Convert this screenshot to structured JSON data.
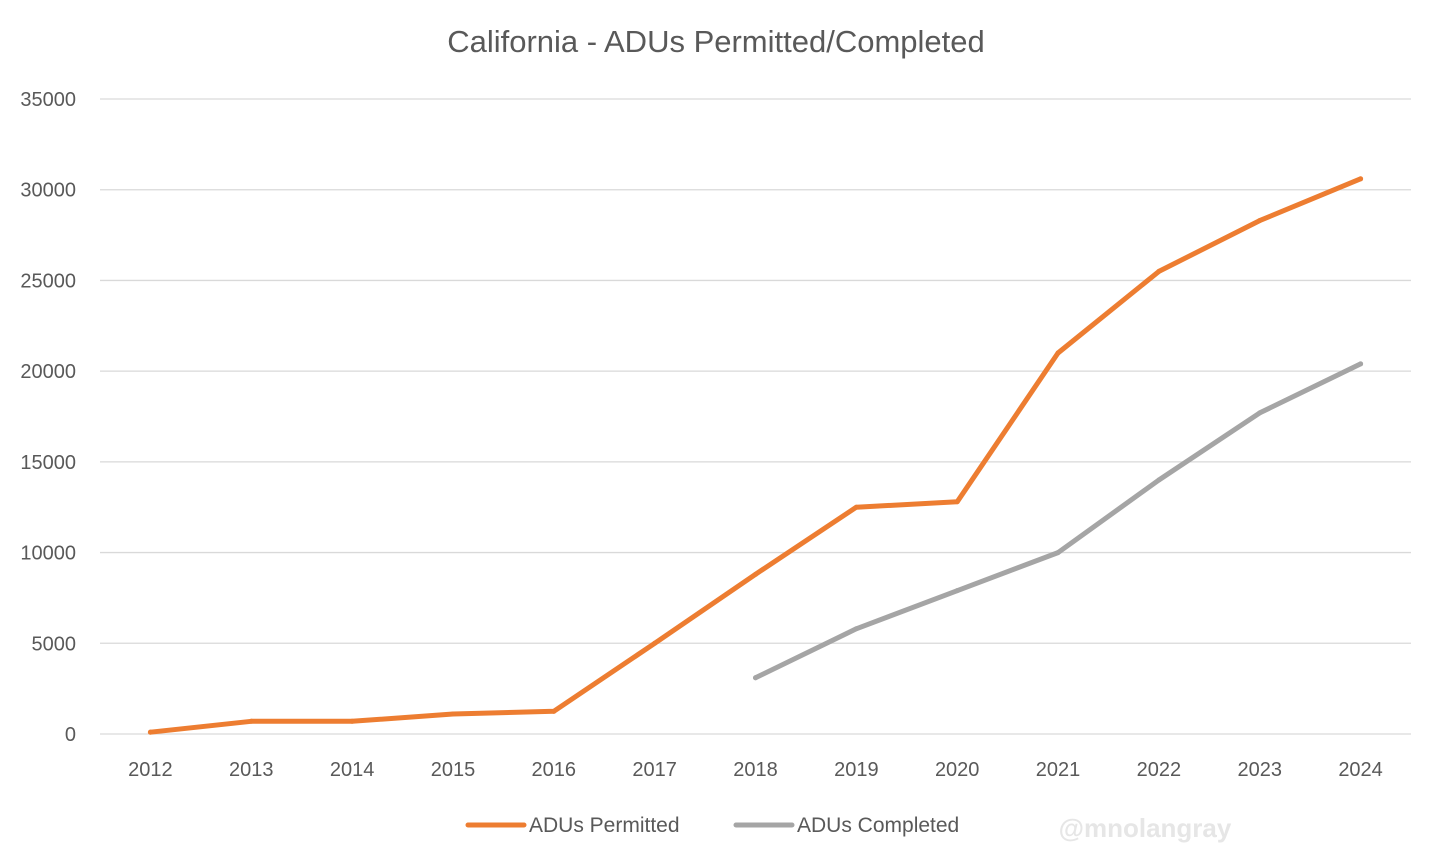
{
  "chart_data": {
    "type": "line",
    "title": "California - ADUs Permitted/Completed",
    "xlabel": "",
    "ylabel": "",
    "categories": [
      "2012",
      "2013",
      "2014",
      "2015",
      "2016",
      "2017",
      "2018",
      "2019",
      "2020",
      "2021",
      "2022",
      "2023",
      "2024"
    ],
    "ylim": [
      0,
      35000
    ],
    "yticks": [
      "0",
      "5000",
      "10000",
      "15000",
      "20000",
      "25000",
      "30000",
      "35000"
    ],
    "grid": true,
    "legend_position": "bottom",
    "series": [
      {
        "name": "ADUs Permitted",
        "color": "#ed7d31",
        "values": [
          100,
          700,
          700,
          1100,
          1250,
          5000,
          8800,
          12500,
          12800,
          21000,
          25500,
          28300,
          30600
        ]
      },
      {
        "name": "ADUs Completed",
        "color": "#a5a5a5",
        "values": [
          null,
          null,
          null,
          null,
          null,
          null,
          3100,
          5800,
          7900,
          10000,
          14000,
          17700,
          20400
        ]
      }
    ]
  },
  "watermark": "@mnolangray"
}
